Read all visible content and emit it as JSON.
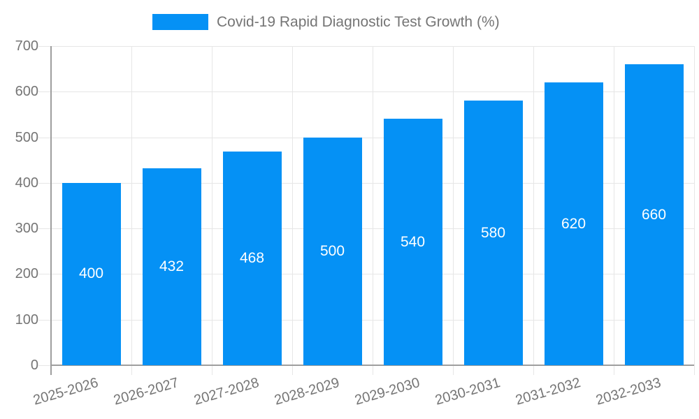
{
  "legend": {
    "label": "Covid-19 Rapid Diagnostic Test Growth (%)"
  },
  "colors": {
    "bar": "#0591f5",
    "grid": "#e6e6e6",
    "axis": "#9e9e9e",
    "text": "#757575",
    "bar_label": "#ffffff",
    "background": "#ffffff"
  },
  "chart_data": {
    "type": "bar",
    "title": "Covid-19 Rapid Diagnostic Test Growth (%)",
    "categories": [
      "2025-2026",
      "2026-2027",
      "2027-2028",
      "2028-2029",
      "2029-2030",
      "2030-2031",
      "2031-2032",
      "2032-2033"
    ],
    "values": [
      400,
      432,
      468,
      500,
      540,
      580,
      620,
      660
    ],
    "bar_labels": [
      400,
      432,
      468,
      500,
      540,
      580,
      620,
      660
    ],
    "xlabel": "",
    "ylabel": "",
    "ylim": [
      0,
      700
    ],
    "yticks": [
      0,
      100,
      200,
      300,
      400,
      500,
      600,
      700
    ],
    "grid": true,
    "legend_position": "top",
    "bar_color": "#0591f5"
  }
}
